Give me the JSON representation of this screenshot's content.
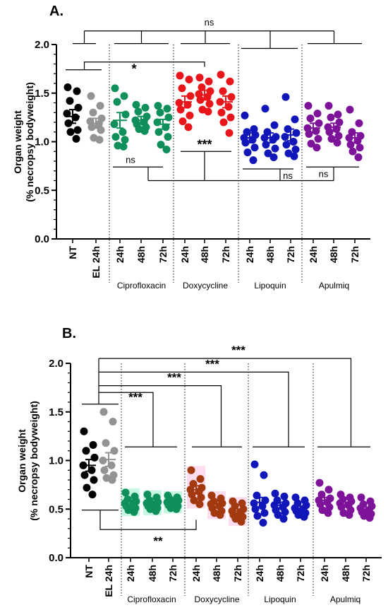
{
  "chart_data": [
    {
      "type": "scatter",
      "panel_label": "A.",
      "ylabel": "Organ weight",
      "ylabel_sub": "(% necropsy bodyweight)",
      "ylim": [
        0,
        2
      ],
      "yticks": [
        "0.0",
        "0.5",
        "1.0",
        "1.5",
        "2.0"
      ],
      "yminor": true,
      "categories": [
        "NT",
        "EL 24h",
        "24h",
        "48h",
        "72h",
        "24h",
        "48h",
        "72h",
        "24h",
        "48h",
        "72h",
        "24h",
        "48h",
        "72h"
      ],
      "groups": [
        {
          "label": "Ciprofloxacin",
          "start": 2,
          "end": 4
        },
        {
          "label": "Doxycycline",
          "start": 5,
          "end": 7
        },
        {
          "label": "Lipoquin",
          "start": 8,
          "end": 10
        },
        {
          "label": "Apulmiq",
          "start": 11,
          "end": 13
        }
      ],
      "series": [
        {
          "color": "#000000",
          "mean": 1.26,
          "sem": 0.07,
          "points": [
            1.56,
            1.52,
            1.42,
            1.35,
            1.29,
            1.25,
            1.19,
            1.12,
            1.1,
            1.03
          ]
        },
        {
          "color": "#939393",
          "mean": 1.19,
          "sem": 0.05,
          "points": [
            1.47,
            1.37,
            1.3,
            1.24,
            1.21,
            1.18,
            1.15,
            1.12,
            1.04,
            1.02
          ]
        },
        {
          "color": "#0f8f5a",
          "mean": 1.22,
          "sem": 0.08,
          "points": [
            1.55,
            1.47,
            1.41,
            1.28,
            1.18,
            1.1,
            1.05,
            1.02,
            0.96,
            0.95
          ]
        },
        {
          "color": "#0f8f5a",
          "mean": 1.22,
          "sem": 0.04,
          "points": [
            1.38,
            1.35,
            1.31,
            1.26,
            1.22,
            1.2,
            1.18,
            1.15,
            1.13,
            1.11
          ]
        },
        {
          "color": "#0f8f5a",
          "mean": 1.18,
          "sem": 0.05,
          "points": [
            1.37,
            1.34,
            1.3,
            1.25,
            1.2,
            1.15,
            1.1,
            1.05,
            0.97,
            0.92
          ]
        },
        {
          "color": "#e8151b",
          "mean": 1.41,
          "sem": 0.06,
          "points": [
            1.68,
            1.64,
            1.55,
            1.47,
            1.4,
            1.38,
            1.33,
            1.27,
            1.21,
            1.15
          ]
        },
        {
          "color": "#e8151b",
          "mean": 1.48,
          "sem": 0.05,
          "points": [
            1.66,
            1.62,
            1.56,
            1.52,
            1.49,
            1.46,
            1.43,
            1.39,
            1.33,
            1.31
          ]
        },
        {
          "color": "#e8151b",
          "mean": 1.41,
          "sem": 0.06,
          "points": [
            1.69,
            1.62,
            1.52,
            1.46,
            1.41,
            1.36,
            1.3,
            1.25,
            1.2,
            1.09
          ]
        },
        {
          "color": "#1016b8",
          "mean": 1.04,
          "sem": 0.05,
          "points": [
            1.27,
            1.13,
            1.1,
            1.07,
            1.04,
            1.02,
            0.99,
            0.94,
            0.89,
            0.81
          ]
        },
        {
          "color": "#1016b8",
          "mean": 1.04,
          "sem": 0.05,
          "points": [
            1.34,
            1.17,
            1.1,
            1.05,
            1.04,
            1.02,
            0.97,
            0.93,
            0.88,
            0.84
          ]
        },
        {
          "color": "#1016b8",
          "mean": 1.07,
          "sem": 0.06,
          "points": [
            1.46,
            1.23,
            1.13,
            1.09,
            1.05,
            1.0,
            0.97,
            0.92,
            0.88,
            0.85
          ]
        },
        {
          "color": "#7d1399",
          "mean": 1.14,
          "sem": 0.05,
          "points": [
            1.37,
            1.29,
            1.24,
            1.19,
            1.14,
            1.11,
            1.08,
            1.03,
            0.98,
            0.94
          ]
        },
        {
          "color": "#7d1399",
          "mean": 1.15,
          "sem": 0.04,
          "points": [
            1.37,
            1.28,
            1.25,
            1.2,
            1.15,
            1.13,
            1.1,
            1.06,
            1.03,
            0.99
          ]
        },
        {
          "color": "#7d1399",
          "mean": 1.04,
          "sem": 0.05,
          "points": [
            1.33,
            1.19,
            1.1,
            1.06,
            1.04,
            1.01,
            0.97,
            0.94,
            0.9,
            0.84
          ]
        }
      ],
      "annotations": [
        {
          "text": "ns",
          "y": 2.12
        },
        {
          "text": "*",
          "y": 1.79
        },
        {
          "text": "***",
          "y": 0.9
        },
        {
          "text": "ns",
          "y": 0.78
        },
        {
          "text": "ns",
          "y": 0.7
        },
        {
          "text": "ns",
          "y": 0.7
        }
      ]
    },
    {
      "type": "scatter",
      "panel_label": "B.",
      "ylabel": "Organ weight",
      "ylabel_sub": "(% necropsy bodyweight)",
      "ylim": [
        0,
        2
      ],
      "yticks": [
        "0.0",
        "0.5",
        "1.0",
        "1.5",
        "2.0"
      ],
      "yminor": true,
      "categories": [
        "NT",
        "EL 24h",
        "24h",
        "48h",
        "72h",
        "24h",
        "48h",
        "72h",
        "24h",
        "48h",
        "72h",
        "24h",
        "48h",
        "72h"
      ],
      "groups": [
        {
          "label": "Ciprofloxacin",
          "start": 2,
          "end": 4
        },
        {
          "label": "Doxycycline",
          "start": 5,
          "end": 7
        },
        {
          "label": "Lipoquin",
          "start": 8,
          "end": 10
        },
        {
          "label": "Apulmiq",
          "start": 11,
          "end": 13
        }
      ],
      "series": [
        {
          "color": "#000000",
          "mean": 0.95,
          "sem": 0.06,
          "points": [
            1.3,
            1.16,
            1.1,
            1.03,
            0.95,
            0.9,
            0.85,
            0.8,
            0.72,
            0.65
          ]
        },
        {
          "color": "#939393",
          "mean": 1.01,
          "sem": 0.07,
          "points": [
            1.5,
            1.4,
            1.18,
            1.1,
            1.0,
            0.95,
            0.9,
            0.85,
            0.82,
            0.8
          ]
        },
        {
          "color": "#0f8f5a",
          "mean": 0.57,
          "sem": 0.02,
          "points": [
            0.67,
            0.63,
            0.6,
            0.58,
            0.56,
            0.55,
            0.53,
            0.51,
            0.49,
            0.47
          ]
        },
        {
          "color": "#0f8f5a",
          "mean": 0.56,
          "sem": 0.02,
          "points": [
            0.65,
            0.62,
            0.59,
            0.57,
            0.56,
            0.55,
            0.53,
            0.51,
            0.5,
            0.48
          ]
        },
        {
          "color": "#0f8f5a",
          "mean": 0.57,
          "sem": 0.02,
          "points": [
            0.64,
            0.62,
            0.6,
            0.59,
            0.57,
            0.56,
            0.54,
            0.53,
            0.51,
            0.5
          ]
        },
        {
          "color": "#a3390f",
          "mean": 0.7,
          "sem": 0.04,
          "points": [
            0.9,
            0.81,
            0.76,
            0.72,
            0.7,
            0.68,
            0.65,
            0.62,
            0.59,
            0.55
          ]
        },
        {
          "color": "#a3390f",
          "mean": 0.55,
          "sem": 0.03,
          "points": [
            0.64,
            0.61,
            0.58,
            0.56,
            0.55,
            0.53,
            0.51,
            0.48,
            0.46,
            0.44
          ]
        },
        {
          "color": "#a3390f",
          "mean": 0.48,
          "sem": 0.02,
          "points": [
            0.58,
            0.56,
            0.53,
            0.5,
            0.48,
            0.46,
            0.44,
            0.42,
            0.4,
            0.37
          ]
        },
        {
          "color": "#1016b8",
          "mean": 0.57,
          "sem": 0.05,
          "points": [
            0.96,
            0.85,
            0.64,
            0.59,
            0.56,
            0.53,
            0.5,
            0.46,
            0.43,
            0.36
          ]
        },
        {
          "color": "#1016b8",
          "mean": 0.54,
          "sem": 0.03,
          "points": [
            0.66,
            0.63,
            0.59,
            0.56,
            0.54,
            0.52,
            0.49,
            0.47,
            0.44,
            0.4
          ]
        },
        {
          "color": "#1016b8",
          "mean": 0.51,
          "sem": 0.02,
          "points": [
            0.62,
            0.59,
            0.56,
            0.54,
            0.51,
            0.5,
            0.48,
            0.46,
            0.44,
            0.42
          ]
        },
        {
          "color": "#7d1399",
          "mean": 0.59,
          "sem": 0.03,
          "points": [
            0.77,
            0.7,
            0.65,
            0.61,
            0.59,
            0.57,
            0.55,
            0.52,
            0.49,
            0.46
          ]
        },
        {
          "color": "#7d1399",
          "mean": 0.55,
          "sem": 0.02,
          "points": [
            0.65,
            0.62,
            0.6,
            0.58,
            0.56,
            0.54,
            0.52,
            0.49,
            0.46,
            0.44
          ]
        },
        {
          "color": "#7d1399",
          "mean": 0.5,
          "sem": 0.02,
          "points": [
            0.62,
            0.58,
            0.55,
            0.53,
            0.51,
            0.49,
            0.47,
            0.45,
            0.43,
            0.41
          ]
        }
      ],
      "annotations": [
        {
          "text": "***",
          "y": 2.1
        },
        {
          "text": "***",
          "y": 1.91
        },
        {
          "text": "***",
          "y": 1.72
        },
        {
          "text": "***",
          "y": 1.62
        },
        {
          "text": "**",
          "y": 0.18
        }
      ]
    }
  ]
}
